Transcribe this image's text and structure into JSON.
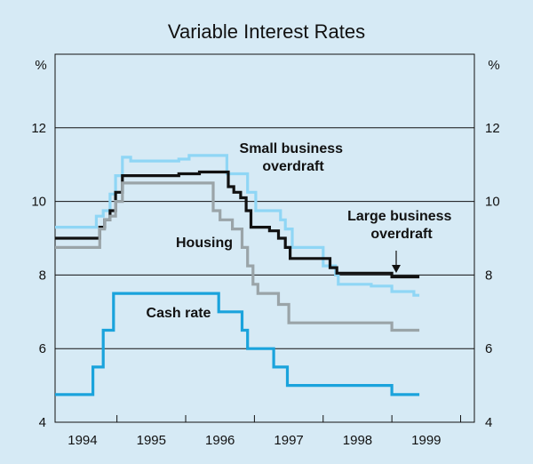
{
  "chart_data": {
    "type": "line",
    "title": "Variable Interest Rates",
    "ylabel_left": "%",
    "ylabel_right": "%",
    "ylim": [
      4,
      14
    ],
    "xlim": [
      1993.6,
      1999.7
    ],
    "yticks": [
      4,
      6,
      8,
      10,
      12
    ],
    "ytick_labels": [
      "4",
      "6",
      "8",
      "10",
      "12"
    ],
    "xtick_labels": [
      "1994",
      "1995",
      "1996",
      "1997",
      "1998",
      "1999"
    ],
    "xtick_positions": [
      1994,
      1995,
      1996,
      1997,
      1998,
      1999
    ],
    "xtick_boundaries": [
      1993.5,
      1994.5,
      1995.5,
      1996.5,
      1997.5,
      1998.5,
      1999.5
    ],
    "grid": true,
    "series": [
      {
        "name": "Small business overdraft",
        "label_lines": [
          "Small business",
          "overdraft"
        ],
        "color": "#8fd6f5",
        "x": [
          1993.6,
          1994.2,
          1994.2,
          1994.3,
          1994.3,
          1994.4,
          1994.4,
          1994.48,
          1994.48,
          1994.58,
          1994.58,
          1994.7,
          1994.7,
          1994.88,
          1994.88,
          1995.4,
          1995.4,
          1995.55,
          1995.55,
          1995.65,
          1995.65,
          1996.1,
          1996.1,
          1996.4,
          1996.4,
          1996.52,
          1996.52,
          1996.88,
          1996.88,
          1996.95,
          1996.95,
          1997.05,
          1997.05,
          1997.5,
          1997.5,
          1997.68,
          1997.68,
          1997.72,
          1997.72,
          1998.05,
          1998.05,
          1998.2,
          1998.2,
          1998.5,
          1998.5,
          1998.82,
          1998.82,
          1998.9
        ],
        "y": [
          9.3,
          9.3,
          9.6,
          9.6,
          9.75,
          9.75,
          10.2,
          10.2,
          10.7,
          10.7,
          11.2,
          11.2,
          11.1,
          11.1,
          11.1,
          11.1,
          11.15,
          11.15,
          11.25,
          11.25,
          11.25,
          11.25,
          10.75,
          10.75,
          10.25,
          10.25,
          9.75,
          9.75,
          9.5,
          9.5,
          9.25,
          9.25,
          8.75,
          8.75,
          8.25,
          8.25,
          8.0,
          8.0,
          7.75,
          7.75,
          7.75,
          7.75,
          7.7,
          7.7,
          7.55,
          7.55,
          7.45,
          7.45
        ]
      },
      {
        "name": "Large business overdraft",
        "label_lines": [
          "Large business",
          "overdraft"
        ],
        "color": "#111111",
        "x": [
          1993.6,
          1994.25,
          1994.25,
          1994.32,
          1994.32,
          1994.4,
          1994.4,
          1994.48,
          1994.48,
          1994.58,
          1994.58,
          1994.7,
          1994.7,
          1995.4,
          1995.4,
          1995.7,
          1995.7,
          1996.12,
          1996.12,
          1996.2,
          1996.2,
          1996.3,
          1996.3,
          1996.38,
          1996.38,
          1996.45,
          1996.45,
          1996.72,
          1996.72,
          1996.85,
          1996.85,
          1996.95,
          1996.95,
          1997.02,
          1997.02,
          1997.6,
          1997.6,
          1997.7,
          1997.7,
          1998.2,
          1998.2,
          1998.5,
          1998.5,
          1998.52,
          1998.52,
          1998.9
        ],
        "y": [
          9.0,
          9.0,
          9.3,
          9.3,
          9.5,
          9.5,
          9.75,
          9.75,
          10.25,
          10.25,
          10.7,
          10.7,
          10.7,
          10.7,
          10.75,
          10.75,
          10.8,
          10.8,
          10.4,
          10.4,
          10.25,
          10.25,
          10.1,
          10.1,
          9.75,
          9.75,
          9.3,
          9.3,
          9.2,
          9.2,
          9.0,
          9.0,
          8.75,
          8.75,
          8.45,
          8.45,
          8.2,
          8.2,
          8.05,
          8.05,
          8.05,
          8.05,
          7.95,
          7.95,
          7.95,
          7.95
        ]
      },
      {
        "name": "Housing",
        "label_lines": [
          "Housing"
        ],
        "color": "#9aa4a8",
        "x": [
          1993.6,
          1994.25,
          1994.25,
          1994.32,
          1994.32,
          1994.4,
          1994.4,
          1994.48,
          1994.48,
          1994.58,
          1994.58,
          1994.7,
          1994.7,
          1995.9,
          1995.9,
          1996.0,
          1996.0,
          1996.18,
          1996.18,
          1996.32,
          1996.32,
          1996.4,
          1996.4,
          1996.48,
          1996.48,
          1996.55,
          1996.55,
          1996.85,
          1996.85,
          1997.0,
          1997.0,
          1997.7,
          1997.7,
          1998.5,
          1998.5,
          1998.55,
          1998.55,
          1998.9
        ],
        "y": [
          8.75,
          8.75,
          9.25,
          9.25,
          9.5,
          9.5,
          9.6,
          9.6,
          10.0,
          10.0,
          10.5,
          10.5,
          10.5,
          10.5,
          9.75,
          9.75,
          9.5,
          9.5,
          9.25,
          9.25,
          8.75,
          8.75,
          8.25,
          8.25,
          7.75,
          7.75,
          7.5,
          7.5,
          7.2,
          7.2,
          6.7,
          6.7,
          6.7,
          6.7,
          6.5,
          6.5,
          6.5,
          6.5
        ]
      },
      {
        "name": "Cash rate",
        "label_lines": [
          "Cash rate"
        ],
        "color": "#1aa3dc",
        "x": [
          1993.6,
          1994.15,
          1994.15,
          1994.3,
          1994.3,
          1994.45,
          1994.45,
          1995.0,
          1995.0,
          1995.5,
          1995.5,
          1995.98,
          1995.98,
          1996.32,
          1996.32,
          1996.4,
          1996.4,
          1996.78,
          1996.78,
          1996.98,
          1996.98,
          1997.0,
          1997.0,
          1998.5,
          1998.5,
          1998.9
        ],
        "y": [
          4.75,
          4.75,
          5.5,
          5.5,
          6.5,
          6.5,
          7.5,
          7.5,
          7.5,
          7.5,
          7.5,
          7.5,
          7.0,
          7.0,
          6.5,
          6.5,
          6.0,
          6.0,
          5.5,
          5.5,
          5.0,
          5.0,
          5.0,
          5.0,
          4.75,
          4.75
        ]
      }
    ]
  }
}
